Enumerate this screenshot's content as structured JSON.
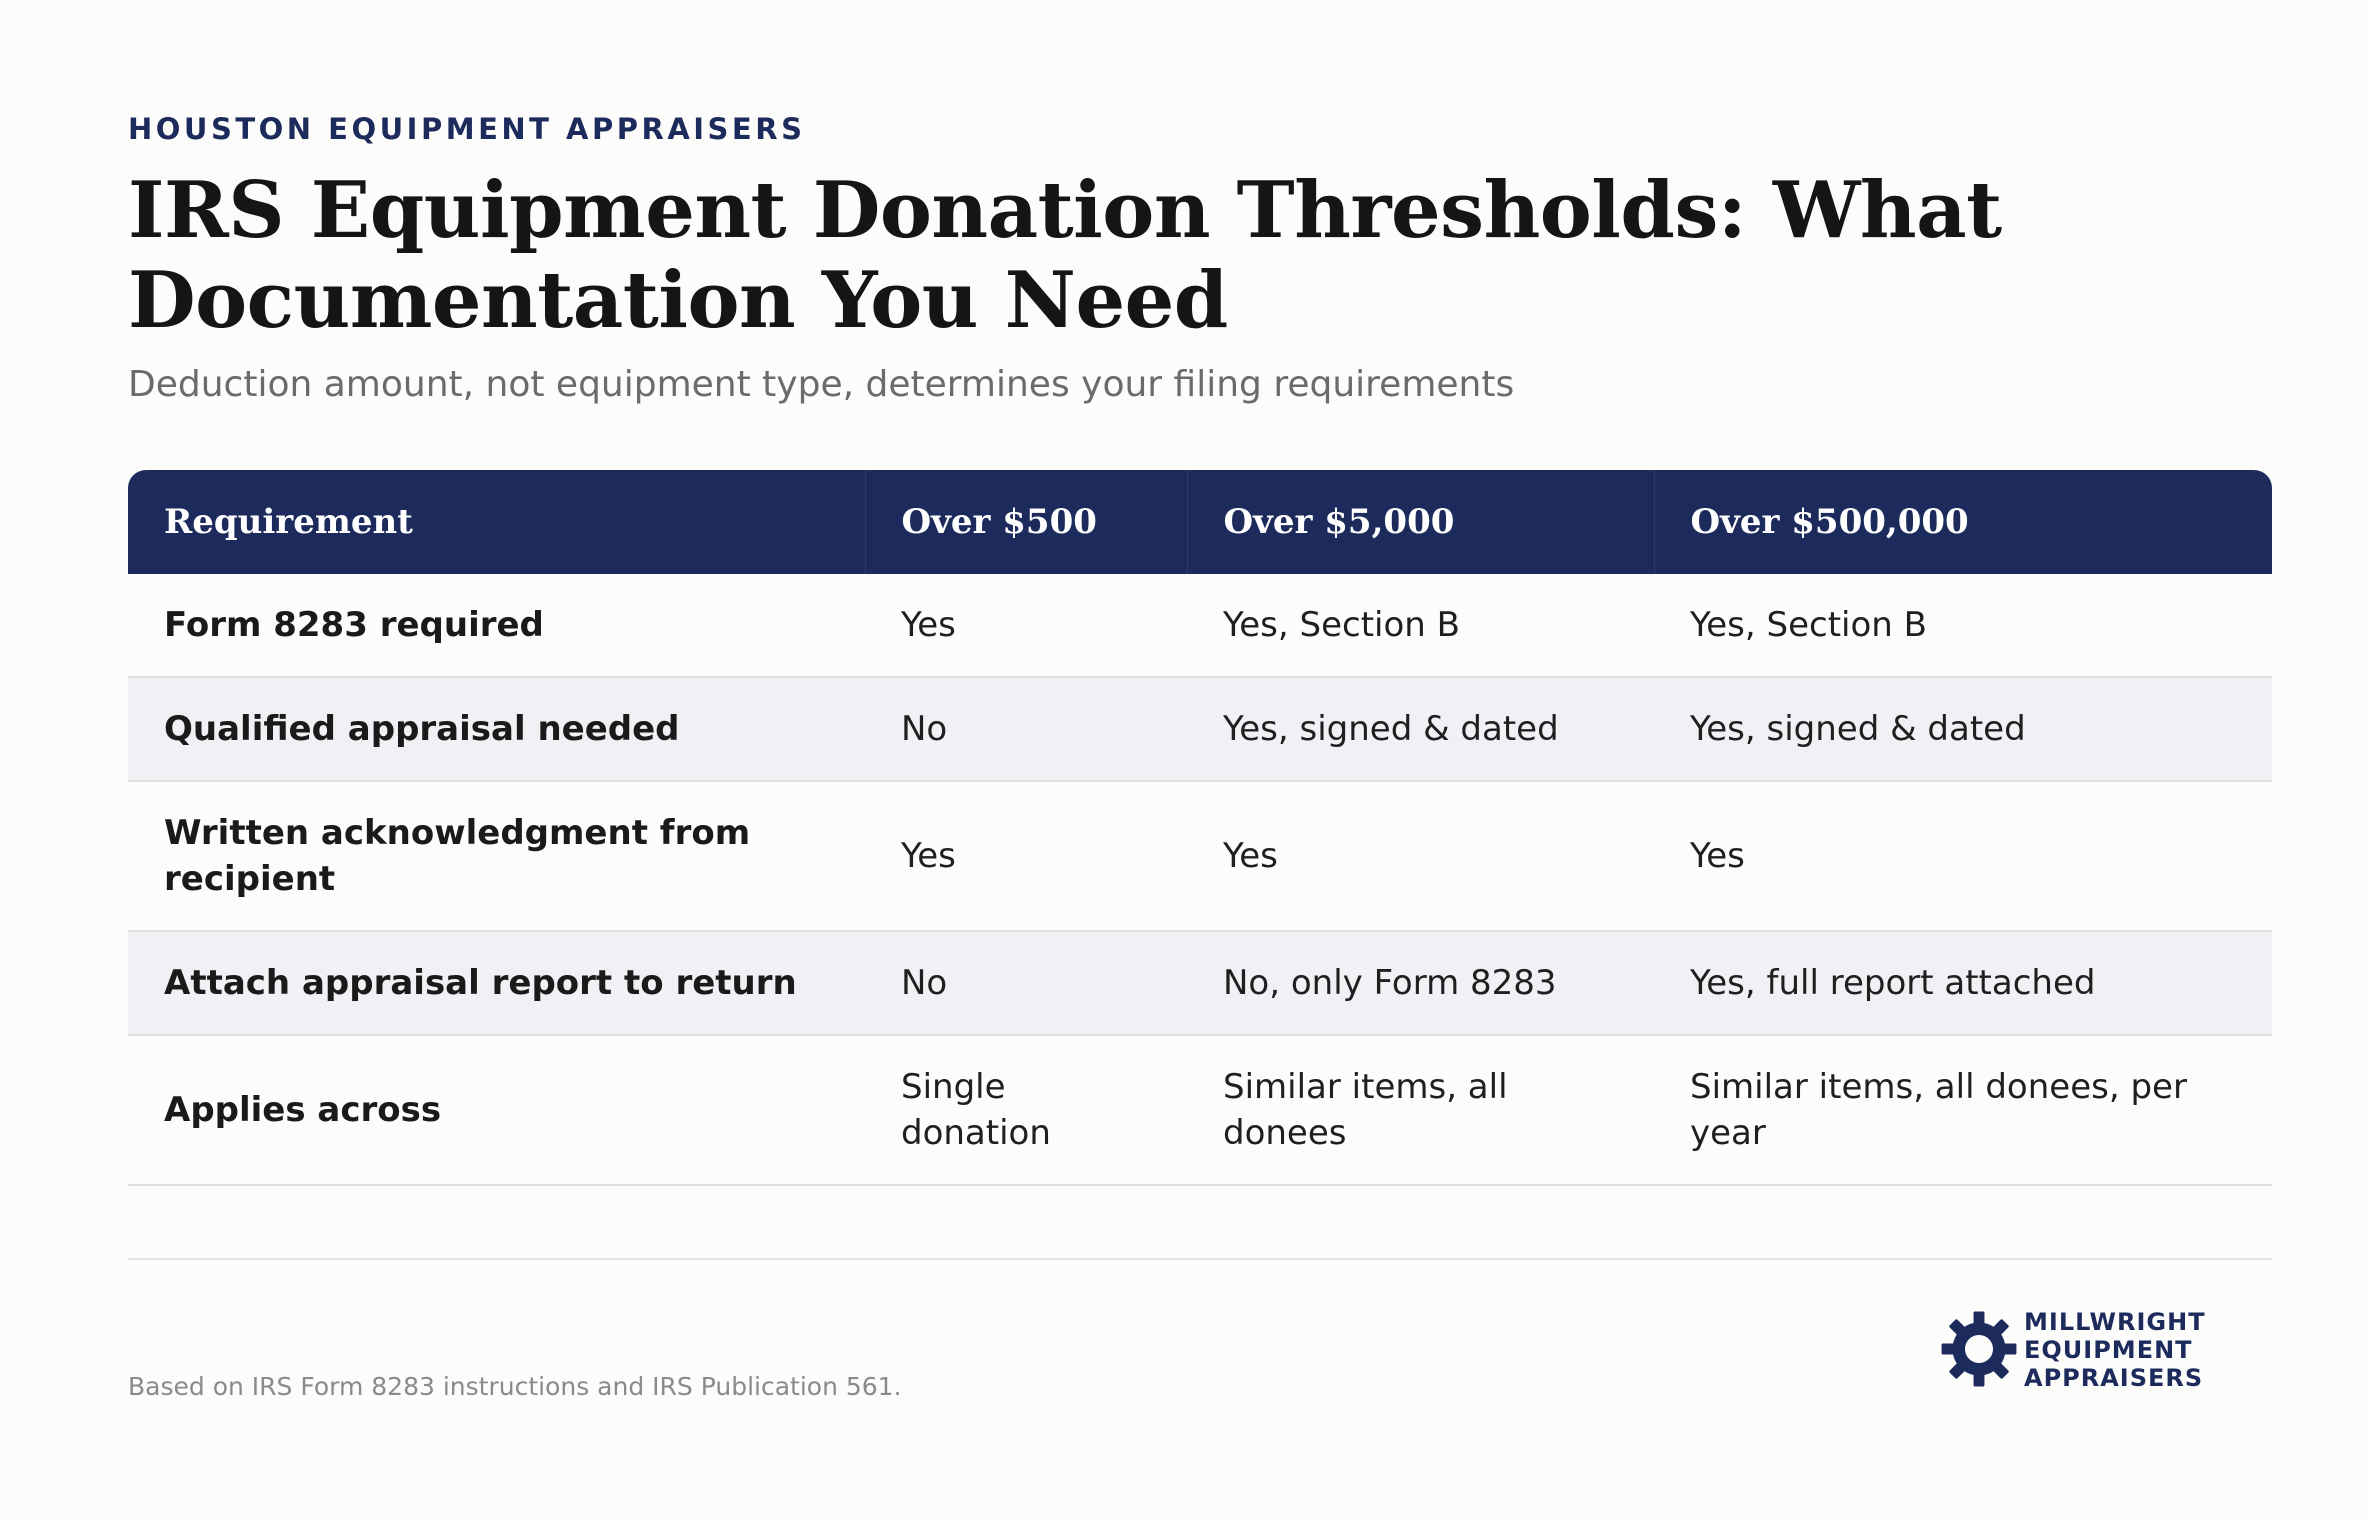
{
  "header": {
    "eyebrow": "HOUSTON EQUIPMENT APPRAISERS",
    "title": "IRS Equipment Donation Thresholds: What Documentation You Need",
    "subtitle": "Deduction amount, not equipment type, determines your filing requirements"
  },
  "table": {
    "headers": [
      "Requirement",
      "Over $500",
      "Over $5,000",
      "Over $500,000"
    ],
    "rows": [
      [
        "Form 8283 required",
        "Yes",
        "Yes, Section B",
        "Yes, Section B"
      ],
      [
        "Qualified appraisal needed",
        "No",
        "Yes, signed & dated",
        "Yes, signed & dated"
      ],
      [
        "Written acknowledgment from recipient",
        "Yes",
        "Yes",
        "Yes"
      ],
      [
        "Attach appraisal report to return",
        "No",
        "No, only Form 8283",
        "Yes, full report attached"
      ],
      [
        "Applies across",
        "Single donation",
        "Similar items, all donees",
        "Similar items, all donees, per year"
      ]
    ]
  },
  "footer": {
    "source": "Based on IRS Form 8283 instructions and IRS Publication 561.",
    "logo": {
      "icon": "gear-icon",
      "lines": [
        "MILLWRIGHT",
        "EQUIPMENT",
        "APPRAISERS"
      ],
      "color": "#1d2a5c"
    }
  },
  "colors": {
    "header_bg": "#1d2a5c",
    "stripe_bg": "#f0f1f5",
    "page_bg": "#fcfcfb"
  }
}
